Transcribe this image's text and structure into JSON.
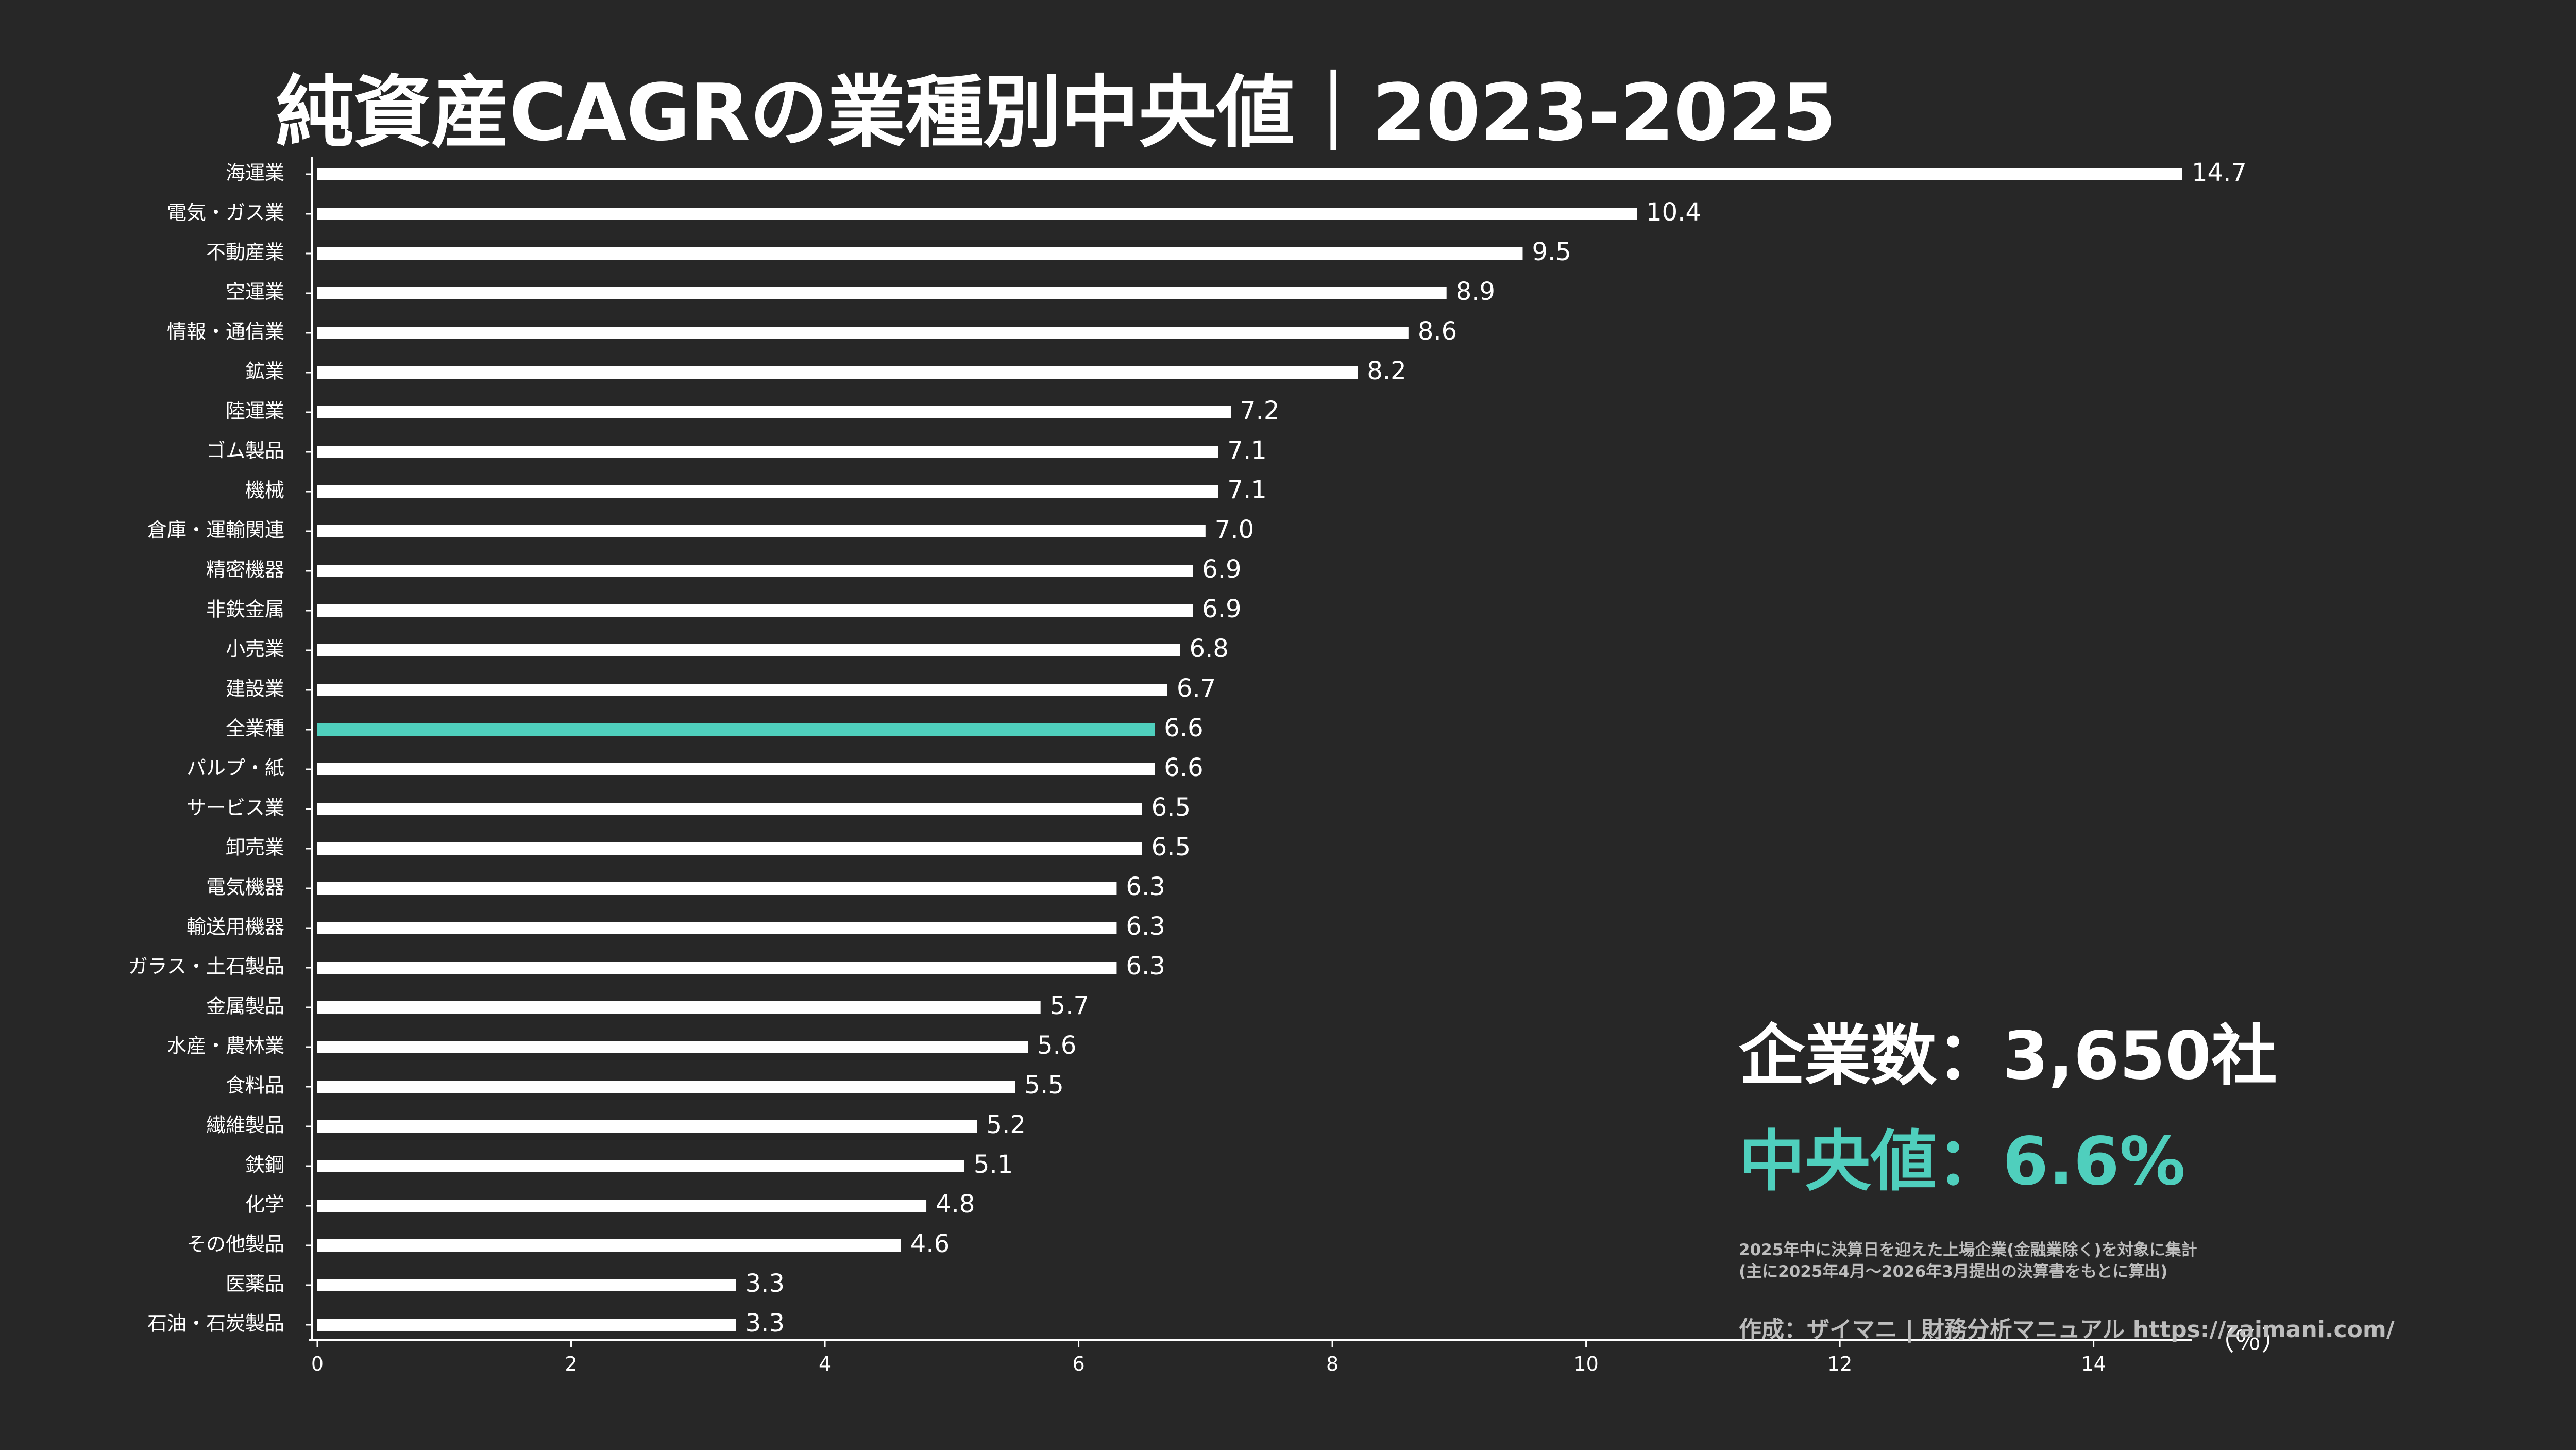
{
  "chart_data": {
    "type": "bar",
    "orientation": "horizontal",
    "title": "純資産CAGRの業種別中央値｜2023-2025",
    "unit_label": "（％）",
    "xlim": [
      0,
      14.7
    ],
    "xticks": [
      0,
      2,
      4,
      6,
      8,
      10,
      12,
      14
    ],
    "grid": false,
    "highlight_category": "全業種",
    "categories": [
      "海運業",
      "電気・ガス業",
      "不動産業",
      "空運業",
      "情報・通信業",
      "鉱業",
      "陸運業",
      "ゴム製品",
      "機械",
      "倉庫・運輸関連",
      "精密機器",
      "非鉄金属",
      "小売業",
      "建設業",
      "全業種",
      "パルプ・紙",
      "サービス業",
      "卸売業",
      "電気機器",
      "輸送用機器",
      "ガラス・土石製品",
      "金属製品",
      "水産・農林業",
      "食料品",
      "繊維製品",
      "鉄鋼",
      "化学",
      "その他製品",
      "医薬品",
      "石油・石炭製品"
    ],
    "values": [
      14.7,
      10.4,
      9.5,
      8.9,
      8.6,
      8.2,
      7.2,
      7.1,
      7.1,
      7.0,
      6.9,
      6.9,
      6.8,
      6.7,
      6.6,
      6.6,
      6.5,
      6.5,
      6.3,
      6.3,
      6.3,
      5.7,
      5.6,
      5.5,
      5.2,
      5.1,
      4.8,
      4.6,
      3.3,
      3.3
    ],
    "value_labels": [
      "14.7",
      "10.4",
      "9.5",
      "8.9",
      "8.6",
      "8.2",
      "7.2",
      "7.1",
      "7.1",
      "7.0",
      "6.9",
      "6.9",
      "6.8",
      "6.7",
      "6.6",
      "6.6",
      "6.5",
      "6.5",
      "6.3",
      "6.3",
      "6.3",
      "5.7",
      "5.6",
      "5.5",
      "5.2",
      "5.1",
      "4.8",
      "4.6",
      "3.3",
      "3.3"
    ]
  },
  "info": {
    "company_count": "企業数：3,650社",
    "median": "中央値：6.6%",
    "note_line1": "2025年中に決算日を迎えた上場企業(金融業除く)を対象に集計",
    "note_line2": "(主に2025年4月～2026年3月提出の決算書をもとに算出)",
    "credit": "作成：ザイマニ | 財務分析マニュアル https://zaimani.com/"
  },
  "colors": {
    "background": "#272727",
    "bar": "#ffffff",
    "highlight": "#4fcfbd",
    "text": "#ffffff",
    "subtext": "#bdbdbd"
  }
}
